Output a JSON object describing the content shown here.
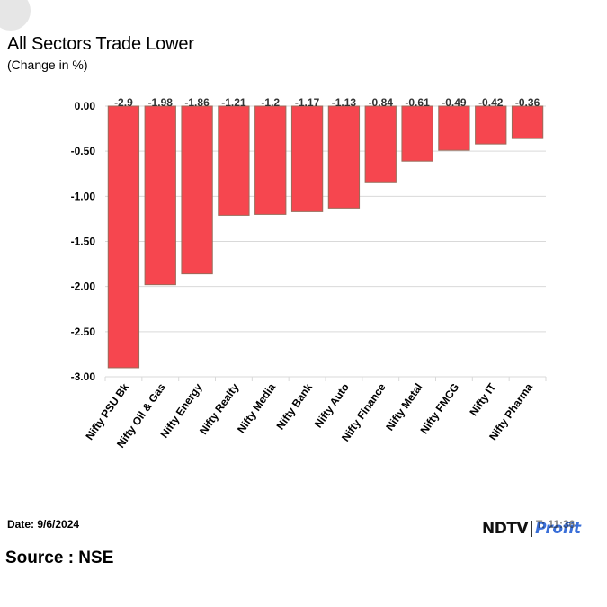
{
  "title": "All Sectors Trade Lower",
  "subtitle": "(Change in %)",
  "footer": {
    "date": "Date: 9/6/2024",
    "source": "Source : NSE",
    "time_partial": "T: 11:36",
    "logo_left": "NDTV",
    "logo_right": "Profit"
  },
  "colors": {
    "bar_fill": "#f6464f",
    "bar_stroke": "#9a6b5a",
    "grid": "#d9d9d9",
    "text": "#000000"
  },
  "chart_data": {
    "type": "bar",
    "categories": [
      "Nifty PSU Bk",
      "Nifty Oil & Gas",
      "Nifty Energy",
      "Nifty Realty",
      "Nifty Media",
      "Nifty Bank",
      "Nifty Auto",
      "Nifty Finance",
      "Nifty Metal",
      "Nifty FMCG",
      "Nifty IT",
      "Nifty Pharma"
    ],
    "values": [
      -2.9,
      -1.98,
      -1.86,
      -1.21,
      -1.2,
      -1.17,
      -1.13,
      -0.84,
      -0.61,
      -0.49,
      -0.42,
      -0.36
    ],
    "data_labels": [
      "-2.9",
      "-1.98",
      "-1.86",
      "-1.21",
      "-1.2",
      "-1.17",
      "-1.13",
      "-0.84",
      "-0.61",
      "-0.49",
      "-0.42",
      "-0.36"
    ],
    "yticks": [
      "0.00",
      "-0.50",
      "-1.00",
      "-1.50",
      "-2.00",
      "-2.50",
      "-3.00"
    ],
    "ytick_values": [
      0,
      -0.5,
      -1,
      -1.5,
      -2,
      -2.5,
      -3
    ],
    "ylim": [
      -3,
      0
    ],
    "title": "All Sectors Trade Lower",
    "ylabel": "(Change in %)",
    "xlabel": "",
    "grid": true,
    "legend": "none"
  }
}
